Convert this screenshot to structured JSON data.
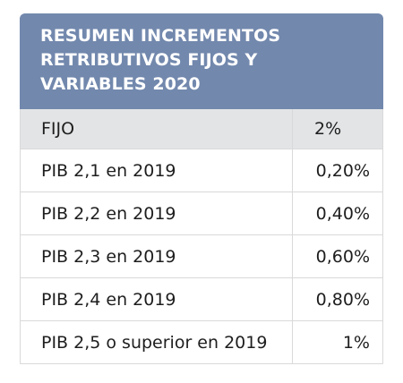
{
  "header": {
    "title": "RESUMEN INCREMENTOS RETRIBUTIVOS FIJOS Y VARIABLES 2020",
    "title_lines": [
      "RESUMEN INCREMENTOS",
      "RETRIBUTIVOS FIJOS Y",
      "VARIABLES 2020"
    ]
  },
  "colors": {
    "header_bg": "#7288ad",
    "band_bg": "#e3e4e6",
    "border": "#d9d9d9"
  },
  "table": {
    "fixed_row": {
      "label": "FIJO",
      "value": "2%"
    },
    "rows": [
      {
        "label": "PIB 2,1 en 2019",
        "value": "0,20%"
      },
      {
        "label": "PIB 2,2 en 2019",
        "value": "0,40%"
      },
      {
        "label": "PIB 2,3 en 2019",
        "value": "0,60%"
      },
      {
        "label": "PIB 2,4 en 2019",
        "value": "0,80%"
      },
      {
        "label": "PIB 2,5 o superior en 2019",
        "value": "1%"
      }
    ]
  }
}
